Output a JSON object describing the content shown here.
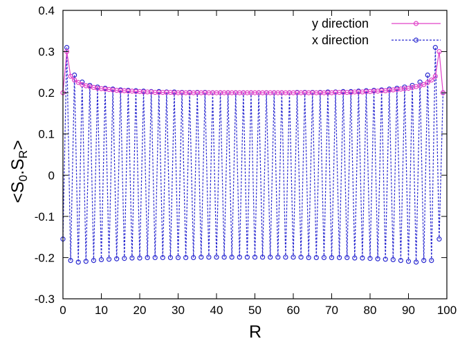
{
  "chart_data": {
    "type": "line",
    "title": "",
    "xlabel": "R",
    "ylabel": {
      "lt": "<",
      "s1": "S",
      "sub1": "0",
      "dot": ".",
      "s2": "S",
      "sub2": "R",
      "gt": ">"
    },
    "xlim": [
      0,
      100
    ],
    "ylim": [
      -0.3,
      0.4
    ],
    "xticks": [
      0,
      10,
      20,
      30,
      40,
      50,
      60,
      70,
      80,
      90,
      100
    ],
    "xtick_labels": [
      "0",
      "10",
      "20",
      "30",
      "40",
      "50",
      "60",
      "70",
      "80",
      "90",
      "100"
    ],
    "yticks": [
      -0.3,
      -0.2,
      -0.1,
      0,
      0.1,
      0.2,
      0.3,
      0.4
    ],
    "ytick_labels": [
      "-0.3",
      "-0.2",
      "-0.1",
      "0",
      "0.1",
      "0.2",
      "0.3",
      "0.4"
    ],
    "grid": false,
    "legend_position": "top-right",
    "series": [
      {
        "name": "y direction",
        "color": "#e040c8",
        "line_style": "solid",
        "marker": "open-circle",
        "x": [
          0,
          1,
          2,
          3,
          4,
          5,
          6,
          7,
          8,
          9,
          10,
          11,
          12,
          13,
          14,
          15,
          16,
          17,
          18,
          19,
          20,
          21,
          22,
          23,
          24,
          25,
          26,
          27,
          28,
          29,
          30,
          31,
          32,
          33,
          34,
          35,
          36,
          37,
          38,
          39,
          40,
          41,
          42,
          43,
          44,
          45,
          46,
          47,
          48,
          49,
          50,
          51,
          52,
          53,
          54,
          55,
          56,
          57,
          58,
          59,
          60,
          61,
          62,
          63,
          64,
          65,
          66,
          67,
          68,
          69,
          70,
          71,
          72,
          73,
          74,
          75,
          76,
          77,
          78,
          79,
          80,
          81,
          82,
          83,
          84,
          85,
          86,
          87,
          88,
          89,
          90,
          91,
          92,
          93,
          94,
          95,
          96,
          97,
          98,
          99
        ],
        "y": [
          0.2,
          0.3,
          0.24,
          0.231,
          0.225,
          0.22,
          0.217,
          0.215,
          0.213,
          0.211,
          0.21,
          0.209,
          0.208,
          0.207,
          0.206,
          0.205,
          0.205,
          0.204,
          0.204,
          0.203,
          0.203,
          0.202,
          0.202,
          0.202,
          0.201,
          0.201,
          0.201,
          0.201,
          0.201,
          0.2,
          0.2,
          0.2,
          0.2,
          0.2,
          0.2,
          0.2,
          0.2,
          0.2,
          0.2,
          0.2,
          0.2,
          0.2,
          0.2,
          0.2,
          0.2,
          0.2,
          0.2,
          0.2,
          0.2,
          0.2,
          0.2,
          0.2,
          0.2,
          0.2,
          0.2,
          0.2,
          0.2,
          0.2,
          0.2,
          0.2,
          0.2,
          0.2,
          0.2,
          0.2,
          0.2,
          0.2,
          0.2,
          0.2,
          0.2,
          0.2,
          0.2,
          0.201,
          0.201,
          0.201,
          0.201,
          0.201,
          0.202,
          0.202,
          0.202,
          0.203,
          0.203,
          0.204,
          0.204,
          0.205,
          0.205,
          0.206,
          0.207,
          0.208,
          0.209,
          0.21,
          0.211,
          0.213,
          0.215,
          0.217,
          0.22,
          0.225,
          0.231,
          0.24,
          0.3,
          0.2
        ]
      },
      {
        "name": "x direction",
        "color": "#2828d0",
        "line_style": "dashed",
        "marker": "open-circle",
        "x": [
          0,
          1,
          2,
          3,
          4,
          5,
          6,
          7,
          8,
          9,
          10,
          11,
          12,
          13,
          14,
          15,
          16,
          17,
          18,
          19,
          20,
          21,
          22,
          23,
          24,
          25,
          26,
          27,
          28,
          29,
          30,
          31,
          32,
          33,
          34,
          35,
          36,
          37,
          38,
          39,
          40,
          41,
          42,
          43,
          44,
          45,
          46,
          47,
          48,
          49,
          50,
          51,
          52,
          53,
          54,
          55,
          56,
          57,
          58,
          59,
          60,
          61,
          62,
          63,
          64,
          65,
          66,
          67,
          68,
          69,
          70,
          71,
          72,
          73,
          74,
          75,
          76,
          77,
          78,
          79,
          80,
          81,
          82,
          83,
          84,
          85,
          86,
          87,
          88,
          89,
          90,
          91,
          92,
          93,
          94,
          95,
          96,
          97,
          98,
          99
        ],
        "y": [
          -0.155,
          0.31,
          -0.207,
          0.243,
          -0.211,
          0.226,
          -0.209,
          0.218,
          -0.207,
          0.214,
          -0.205,
          0.211,
          -0.204,
          0.209,
          -0.203,
          0.207,
          -0.202,
          0.206,
          -0.201,
          0.205,
          -0.201,
          0.204,
          -0.2,
          0.203,
          -0.2,
          0.203,
          -0.2,
          0.202,
          -0.2,
          0.202,
          -0.2,
          0.201,
          -0.2,
          0.201,
          -0.2,
          0.201,
          -0.199,
          0.201,
          -0.199,
          0.2,
          -0.199,
          0.2,
          -0.199,
          0.2,
          -0.199,
          0.2,
          -0.199,
          0.2,
          -0.199,
          0.2,
          -0.199,
          0.2,
          -0.199,
          0.2,
          -0.199,
          0.2,
          -0.199,
          0.2,
          -0.199,
          0.2,
          -0.199,
          0.201,
          -0.199,
          0.201,
          -0.2,
          0.201,
          -0.2,
          0.201,
          -0.2,
          0.202,
          -0.2,
          0.202,
          -0.2,
          0.203,
          -0.2,
          0.203,
          -0.201,
          0.204,
          -0.201,
          0.205,
          -0.202,
          0.206,
          -0.203,
          0.207,
          -0.204,
          0.209,
          -0.205,
          0.211,
          -0.207,
          0.214,
          -0.209,
          0.218,
          -0.211,
          0.226,
          -0.207,
          0.243,
          -0.207,
          0.31,
          -0.155,
          0.2
        ]
      }
    ]
  }
}
